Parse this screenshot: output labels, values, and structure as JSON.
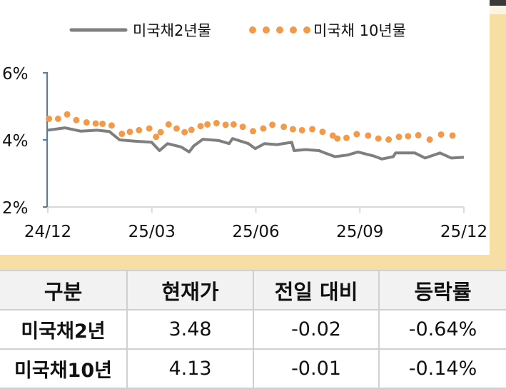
{
  "chart_data": {
    "type": "line",
    "title": "",
    "xlabel": "",
    "ylabel": "",
    "x_range": [
      "2024-12-01",
      "2025-12-01"
    ],
    "x_ticks": [
      "24/12",
      "25/03",
      "25/06",
      "25/09",
      "25/12"
    ],
    "ylim": [
      2,
      6
    ],
    "y_ticks": [
      "2%",
      "4%",
      "6%"
    ],
    "y_tick_values": [
      2,
      4,
      6
    ],
    "grid": false,
    "legend": "top",
    "series": [
      {
        "name": "미국채2년물",
        "style": "solid-line",
        "color": "#7f7f7f",
        "points": [
          [
            "2024-12-01",
            4.29
          ],
          [
            "2024-12-16",
            4.36
          ],
          [
            "2024-12-30",
            4.26
          ],
          [
            "2025-01-13",
            4.29
          ],
          [
            "2025-01-24",
            4.25
          ],
          [
            "2025-02-02",
            4.0
          ],
          [
            "2025-02-16",
            3.96
          ],
          [
            "2025-03-02",
            3.93
          ],
          [
            "2025-03-09",
            3.68
          ],
          [
            "2025-03-16",
            3.89
          ],
          [
            "2025-03-28",
            3.79
          ],
          [
            "2025-04-04",
            3.64
          ],
          [
            "2025-04-08",
            3.82
          ],
          [
            "2025-04-16",
            4.02
          ],
          [
            "2025-04-30",
            3.98
          ],
          [
            "2025-05-09",
            3.89
          ],
          [
            "2025-05-12",
            4.04
          ],
          [
            "2025-05-26",
            3.89
          ],
          [
            "2025-06-01",
            3.74
          ],
          [
            "2025-06-09",
            3.89
          ],
          [
            "2025-06-20",
            3.86
          ],
          [
            "2025-07-03",
            3.93
          ],
          [
            "2025-07-05",
            3.68
          ],
          [
            "2025-07-15",
            3.71
          ],
          [
            "2025-07-27",
            3.68
          ],
          [
            "2025-08-01",
            3.61
          ],
          [
            "2025-08-10",
            3.5
          ],
          [
            "2025-08-21",
            3.55
          ],
          [
            "2025-08-30",
            3.64
          ],
          [
            "2025-09-07",
            3.57
          ],
          [
            "2025-09-13",
            3.52
          ],
          [
            "2025-09-20",
            3.43
          ],
          [
            "2025-09-30",
            3.5
          ],
          [
            "2025-10-02",
            3.61
          ],
          [
            "2025-10-19",
            3.61
          ],
          [
            "2025-10-28",
            3.46
          ],
          [
            "2025-11-10",
            3.61
          ],
          [
            "2025-11-20",
            3.46
          ],
          [
            "2025-12-01",
            3.48
          ]
        ]
      },
      {
        "name": "미국채 10년물",
        "style": "dots",
        "color": "#f39a4a",
        "points": [
          [
            "2024-12-02",
            4.63
          ],
          [
            "2024-12-10",
            4.63
          ],
          [
            "2024-12-18",
            4.76
          ],
          [
            "2024-12-26",
            4.59
          ],
          [
            "2025-01-04",
            4.52
          ],
          [
            "2025-01-12",
            4.49
          ],
          [
            "2025-01-18",
            4.48
          ],
          [
            "2025-01-26",
            4.43
          ],
          [
            "2025-02-04",
            4.18
          ],
          [
            "2025-02-11",
            4.24
          ],
          [
            "2025-02-19",
            4.29
          ],
          [
            "2025-02-28",
            4.34
          ],
          [
            "2025-03-06",
            4.09
          ],
          [
            "2025-03-10",
            4.23
          ],
          [
            "2025-03-17",
            4.46
          ],
          [
            "2025-03-24",
            4.34
          ],
          [
            "2025-03-31",
            4.23
          ],
          [
            "2025-04-06",
            4.3
          ],
          [
            "2025-04-14",
            4.41
          ],
          [
            "2025-04-20",
            4.46
          ],
          [
            "2025-04-28",
            4.5
          ],
          [
            "2025-05-06",
            4.45
          ],
          [
            "2025-05-13",
            4.46
          ],
          [
            "2025-05-21",
            4.39
          ],
          [
            "2025-05-30",
            4.26
          ],
          [
            "2025-06-08",
            4.34
          ],
          [
            "2025-06-16",
            4.45
          ],
          [
            "2025-06-26",
            4.39
          ],
          [
            "2025-07-04",
            4.32
          ],
          [
            "2025-07-12",
            4.29
          ],
          [
            "2025-07-21",
            4.32
          ],
          [
            "2025-07-30",
            4.24
          ],
          [
            "2025-08-08",
            4.13
          ],
          [
            "2025-08-12",
            4.04
          ],
          [
            "2025-08-20",
            4.06
          ],
          [
            "2025-08-29",
            4.17
          ],
          [
            "2025-09-08",
            4.13
          ],
          [
            "2025-09-17",
            4.04
          ],
          [
            "2025-09-26",
            4.01
          ],
          [
            "2025-10-05",
            4.09
          ],
          [
            "2025-10-13",
            4.11
          ],
          [
            "2025-10-22",
            4.14
          ],
          [
            "2025-11-01",
            4.01
          ],
          [
            "2025-11-11",
            4.16
          ],
          [
            "2025-11-21",
            4.13
          ]
        ]
      }
    ]
  },
  "table": {
    "headers": [
      "구분",
      "현재가",
      "전일 대비",
      "등락률"
    ],
    "rows": [
      {
        "name": "미국채2년",
        "price": "3.48",
        "change": "-0.02",
        "rate": "-0.64%"
      },
      {
        "name": "미국채10년",
        "price": "4.13",
        "change": "-0.01",
        "rate": "-0.14%"
      }
    ]
  },
  "colors": {
    "background": "#f7dea4",
    "axis_y": "#4a7ebb",
    "axis_x": "#d9d9d9"
  }
}
